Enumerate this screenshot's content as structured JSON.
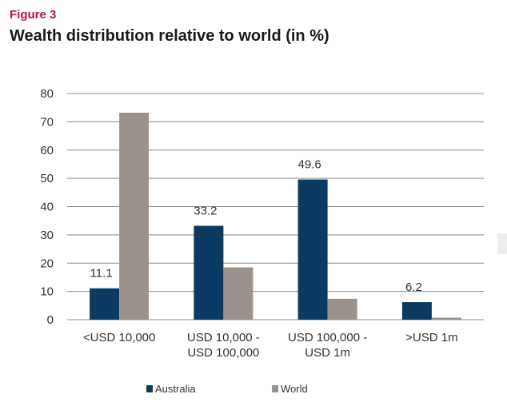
{
  "figure_label": "Figure 3",
  "title": "Wealth distribution relative to world (in %)",
  "chart_data": {
    "type": "bar",
    "categories": [
      [
        "<USD 10,000"
      ],
      [
        "USD 10,000 -",
        "USD 100,000"
      ],
      [
        "USD 100,000 -",
        "USD 1m"
      ],
      [
        ">USD 1m"
      ]
    ],
    "series": [
      {
        "name": "Australia",
        "values": [
          11.1,
          33.2,
          49.6,
          6.2
        ],
        "color": "#0b3a63",
        "labels": [
          "11.1",
          "33.2",
          "49.6",
          "6.2"
        ]
      },
      {
        "name": "World",
        "values": [
          73.2,
          18.5,
          7.4,
          0.7
        ],
        "color": "#9a928c",
        "labels": [
          null,
          null,
          null,
          null
        ]
      }
    ],
    "ylim": [
      0,
      80
    ],
    "yticks": [
      0,
      10,
      20,
      30,
      40,
      50,
      60,
      70,
      80
    ],
    "grid": true,
    "legend_position": "bottom"
  }
}
